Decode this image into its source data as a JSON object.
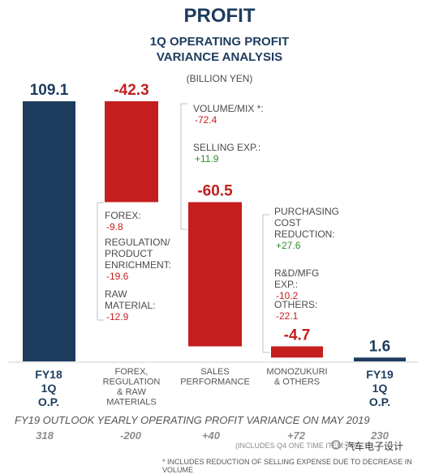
{
  "header": {
    "title": "PROFIT",
    "subtitle": "1Q OPERATING PROFIT\nVARIANCE ANALYSIS",
    "unit": "(BILLION YEN)"
  },
  "colors": {
    "navy": "#1d3c5e",
    "red": "#c41e1e",
    "green": "#2e8b2e",
    "grey": "#4b4b4b"
  },
  "chart_data": {
    "type": "bar",
    "subtype": "waterfall",
    "y_range": [
      0,
      109.1
    ],
    "categories": [
      [
        "FY18",
        "1Q",
        "O.P."
      ],
      [
        "FOREX,",
        "REGULATION",
        "& RAW",
        "MATERIALS"
      ],
      [
        "SALES",
        "PERFORMANCE"
      ],
      [
        "MONOZUKURI",
        "& OTHERS"
      ],
      [
        "FY19",
        "1Q",
        "O.P."
      ]
    ],
    "values": [
      109.1,
      -42.3,
      -60.5,
      -4.7,
      1.6
    ],
    "value_labels": [
      "109.1",
      "-42.3",
      "-60.5",
      "-4.7",
      "1.6"
    ],
    "bar_kinds": [
      "total",
      "delta",
      "delta",
      "delta",
      "total"
    ],
    "breakdowns": [
      {
        "bar": 1,
        "items": [
          {
            "label": "FOREX:",
            "value": "-9.8"
          },
          {
            "label": "REGULATION/\nPRODUCT\nENRICHMENT:",
            "value": "-19.6"
          },
          {
            "label": "RAW\nMATERIAL:",
            "value": "-12.9"
          }
        ]
      },
      {
        "bar": 2,
        "items": [
          {
            "label": "VOLUME/MIX *:",
            "value": "-72.4"
          },
          {
            "label": "SELLING EXP.:",
            "value": "+11.9"
          }
        ]
      },
      {
        "bar": 3,
        "items": [
          {
            "label": "PURCHASING\nCOST\nREDUCTION:",
            "value": "+27.6"
          },
          {
            "label": "R&D/MFG\nEXP.:",
            "value": "-10.2"
          },
          {
            "label": "OTHERS:",
            "value": "-22.1"
          }
        ]
      }
    ],
    "outlook": {
      "title": "FY19 OUTLOOK YEARLY OPERATING PROFIT VARIANCE ON MAY 2019",
      "values": [
        "318",
        "-200",
        "+40",
        "+72",
        "230"
      ],
      "note": "(INCLUDES Q4 ONE TIME ITEM: -66"
    },
    "footnote": "* INCLUDES REDUCTION OF SELLING EXPENSE DUE TO DECREASE IN VOLUME"
  },
  "watermark": "汽车电子设计"
}
